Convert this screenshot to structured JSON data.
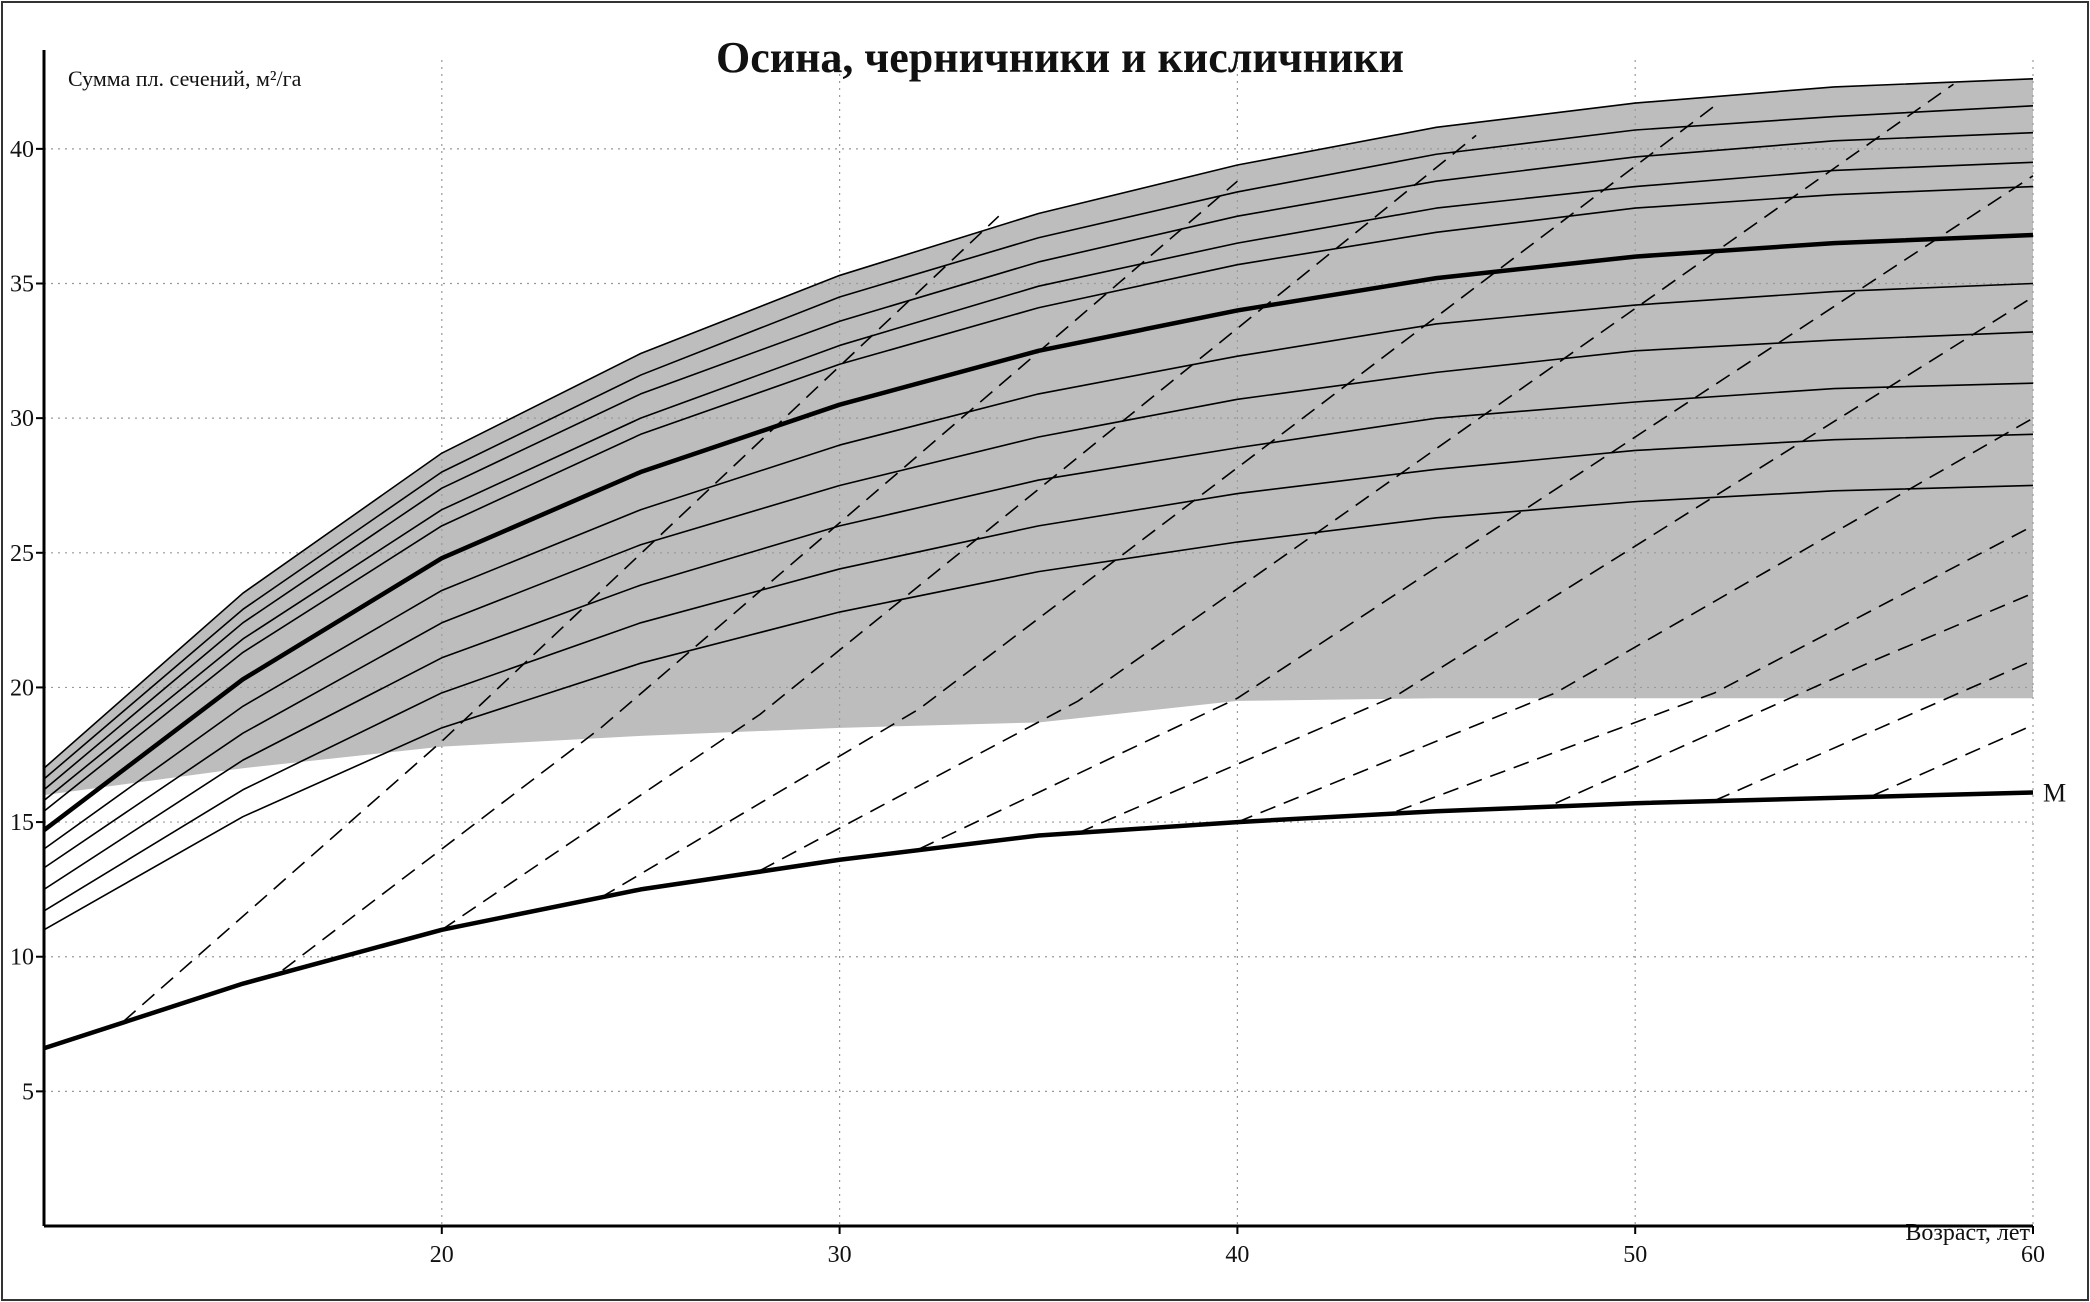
{
  "chart_data": {
    "type": "line",
    "title": "Осина, черничники и кисличники",
    "y_label": "Сумма пл. сечений, м²/га",
    "x_label": "Возраст, лет",
    "xlim": [
      10,
      60
    ],
    "ylim": [
      0,
      43.3
    ],
    "xticks": [
      20,
      30,
      40,
      50,
      60
    ],
    "yticks": [
      5,
      10,
      15,
      20,
      25,
      30,
      35,
      40
    ],
    "grid": true,
    "x": [
      10,
      15,
      20,
      25,
      30,
      35,
      40,
      45,
      50,
      55,
      60
    ],
    "band": {
      "color": "#bdbdbd",
      "lower": [
        16.0,
        17.0,
        17.8,
        18.2,
        18.5,
        18.7,
        19.5,
        19.6,
        19.6,
        19.6,
        19.6
      ]
    },
    "series": [
      {
        "style": "thin",
        "color": "#000000",
        "values": [
          17.0,
          23.5,
          28.7,
          32.4,
          35.3,
          37.6,
          39.4,
          40.8,
          41.7,
          42.3,
          42.6
        ]
      },
      {
        "style": "thin",
        "color": "#000000",
        "values": [
          16.6,
          22.9,
          28.0,
          31.6,
          34.5,
          36.7,
          38.4,
          39.8,
          40.7,
          41.2,
          41.6
        ]
      },
      {
        "style": "thin",
        "color": "#000000",
        "values": [
          16.2,
          22.4,
          27.4,
          30.9,
          33.6,
          35.8,
          37.5,
          38.8,
          39.7,
          40.3,
          40.6
        ]
      },
      {
        "style": "thin",
        "color": "#000000",
        "values": [
          15.8,
          21.8,
          26.6,
          30.0,
          32.7,
          34.9,
          36.5,
          37.8,
          38.6,
          39.2,
          39.5
        ]
      },
      {
        "style": "thin",
        "color": "#000000",
        "values": [
          15.4,
          21.3,
          26.0,
          29.4,
          32.0,
          34.1,
          35.7,
          36.9,
          37.8,
          38.3,
          38.6
        ]
      },
      {
        "style": "bold",
        "color": "#000000",
        "values": [
          14.7,
          20.3,
          24.8,
          28.0,
          30.5,
          32.5,
          34.0,
          35.2,
          36.0,
          36.5,
          36.8
        ]
      },
      {
        "style": "thin",
        "color": "#000000",
        "values": [
          14.0,
          19.3,
          23.6,
          26.6,
          29.0,
          30.9,
          32.3,
          33.5,
          34.2,
          34.7,
          35.0
        ]
      },
      {
        "style": "thin",
        "color": "#000000",
        "values": [
          13.3,
          18.3,
          22.4,
          25.3,
          27.5,
          29.3,
          30.7,
          31.7,
          32.5,
          32.9,
          33.2
        ]
      },
      {
        "style": "thin",
        "color": "#000000",
        "values": [
          12.5,
          17.3,
          21.1,
          23.8,
          26.0,
          27.7,
          28.9,
          30.0,
          30.6,
          31.1,
          31.3
        ]
      },
      {
        "style": "thin",
        "color": "#000000",
        "values": [
          11.7,
          16.2,
          19.8,
          22.4,
          24.4,
          26.0,
          27.2,
          28.1,
          28.8,
          29.2,
          29.4
        ]
      },
      {
        "style": "thin",
        "color": "#000000",
        "values": [
          11.0,
          15.2,
          18.5,
          20.9,
          22.8,
          24.3,
          25.4,
          26.3,
          26.9,
          27.3,
          27.5
        ]
      },
      {
        "name": "M",
        "style": "bold",
        "color": "#000000",
        "values": [
          6.6,
          9.0,
          11.0,
          12.5,
          13.6,
          14.5,
          15.0,
          15.4,
          15.7,
          15.9,
          16.1
        ]
      },
      {
        "style": "dashed",
        "color": "#000000",
        "x": [
          12,
          20,
          34
        ],
        "values": [
          7.6,
          18.0,
          37.5
        ]
      },
      {
        "style": "dashed",
        "color": "#000000",
        "x": [
          16,
          24,
          40
        ],
        "values": [
          9.5,
          18.5,
          38.8
        ]
      },
      {
        "style": "dashed",
        "color": "#000000",
        "x": [
          20,
          28,
          46
        ],
        "values": [
          11.0,
          19.0,
          40.5
        ]
      },
      {
        "style": "dashed",
        "color": "#000000",
        "x": [
          24,
          32,
          52
        ],
        "values": [
          12.2,
          19.2,
          41.6
        ]
      },
      {
        "style": "dashed",
        "color": "#000000",
        "x": [
          28,
          36,
          58
        ],
        "values": [
          13.2,
          19.5,
          42.4
        ]
      },
      {
        "style": "dashed",
        "color": "#000000",
        "x": [
          32,
          40,
          60
        ],
        "values": [
          14.0,
          19.6,
          39.0
        ]
      },
      {
        "style": "dashed",
        "color": "#000000",
        "x": [
          36,
          44,
          60
        ],
        "values": [
          14.6,
          19.7,
          34.5
        ]
      },
      {
        "style": "dashed",
        "color": "#000000",
        "x": [
          40,
          48,
          60
        ],
        "values": [
          15.0,
          19.8,
          30.0
        ]
      },
      {
        "style": "dashed",
        "color": "#000000",
        "x": [
          44,
          52,
          60
        ],
        "values": [
          15.4,
          19.8,
          26.0
        ]
      },
      {
        "style": "dashed",
        "color": "#000000",
        "x": [
          48,
          56,
          60
        ],
        "values": [
          15.7,
          21.0,
          23.5
        ]
      },
      {
        "style": "dashed",
        "color": "#000000",
        "x": [
          52,
          60
        ],
        "values": [
          15.8,
          21.0
        ]
      },
      {
        "style": "dashed",
        "color": "#000000",
        "x": [
          56,
          60
        ],
        "values": [
          16.0,
          18.6
        ]
      }
    ]
  }
}
